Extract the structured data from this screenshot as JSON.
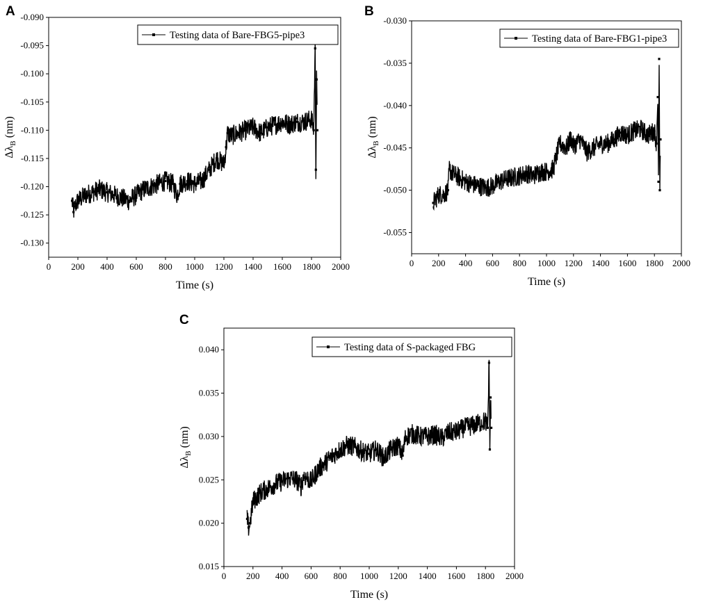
{
  "chart_data": [
    {
      "panel": "A",
      "type": "scatter",
      "xlabel": "Time (s)",
      "ylabel": "Δλ",
      "ylabel_sub": "B",
      "ylabel_unit": "(nm)",
      "xlim": [
        0,
        2000
      ],
      "ylim": [
        -0.1325,
        -0.09
      ],
      "xticks": [
        0,
        200,
        400,
        600,
        800,
        1000,
        1200,
        1400,
        1600,
        1800,
        2000
      ],
      "xtick_labels": [
        "0",
        "200",
        "400",
        "600",
        "800",
        "1000",
        "1200",
        "1400",
        "1600",
        "1800",
        "2000"
      ],
      "yticks": [
        -0.09,
        -0.095,
        -0.1,
        -0.105,
        -0.11,
        -0.115,
        -0.12,
        -0.125,
        -0.13
      ],
      "ytick_labels": [
        "-0.090",
        "-0.095",
        "-0.100",
        "-0.105",
        "-0.110",
        "-0.115",
        "-0.120",
        "-0.125",
        "-0.130"
      ],
      "legend_position": "top-right",
      "grid": false,
      "series": [
        {
          "name": "Testing data of Bare-FBG5-pipe3",
          "color": "#000000",
          "points": [
            [
              160,
              -0.1225
            ],
            [
              170,
              -0.1245
            ],
            [
              180,
              -0.1235
            ],
            [
              200,
              -0.1225
            ],
            [
              250,
              -0.1215
            ],
            [
              300,
              -0.121
            ],
            [
              350,
              -0.1205
            ],
            [
              400,
              -0.121
            ],
            [
              450,
              -0.1215
            ],
            [
              500,
              -0.122
            ],
            [
              550,
              -0.1225
            ],
            [
              600,
              -0.1215
            ],
            [
              650,
              -0.1205
            ],
            [
              700,
              -0.12
            ],
            [
              750,
              -0.1195
            ],
            [
              800,
              -0.119
            ],
            [
              850,
              -0.1195
            ],
            [
              880,
              -0.1215
            ],
            [
              900,
              -0.1195
            ],
            [
              950,
              -0.119
            ],
            [
              1000,
              -0.1195
            ],
            [
              1050,
              -0.119
            ],
            [
              1100,
              -0.117
            ],
            [
              1150,
              -0.115
            ],
            [
              1200,
              -0.116
            ],
            [
              1215,
              -0.113
            ],
            [
              1225,
              -0.1105
            ],
            [
              1250,
              -0.111
            ],
            [
              1300,
              -0.1105
            ],
            [
              1350,
              -0.11
            ],
            [
              1400,
              -0.1095
            ],
            [
              1450,
              -0.1105
            ],
            [
              1500,
              -0.1095
            ],
            [
              1550,
              -0.109
            ],
            [
              1600,
              -0.1085
            ],
            [
              1650,
              -0.109
            ],
            [
              1700,
              -0.1085
            ],
            [
              1750,
              -0.1085
            ],
            [
              1800,
              -0.108
            ],
            [
              1815,
              -0.11
            ],
            [
              1825,
              -0.0955
            ],
            [
              1830,
              -0.117
            ],
            [
              1835,
              -0.101
            ],
            [
              1840,
              -0.11
            ]
          ]
        }
      ]
    },
    {
      "panel": "B",
      "type": "scatter",
      "xlabel": "Time (s)",
      "ylabel": "Δλ",
      "ylabel_sub": "B",
      "ylabel_unit": "(nm)",
      "xlim": [
        0,
        2000
      ],
      "ylim": [
        -0.0575,
        -0.03
      ],
      "xticks": [
        0,
        200,
        400,
        600,
        800,
        1000,
        1200,
        1400,
        1600,
        1800,
        2000
      ],
      "xtick_labels": [
        "0",
        "200",
        "400",
        "600",
        "800",
        "1000",
        "1200",
        "1400",
        "1600",
        "1800",
        "2000"
      ],
      "yticks": [
        -0.03,
        -0.035,
        -0.04,
        -0.045,
        -0.05,
        -0.055
      ],
      "ytick_labels": [
        "-0.030",
        "-0.035",
        "-0.040",
        "-0.045",
        "-0.050",
        "-0.055"
      ],
      "legend_position": "top-right",
      "grid": false,
      "series": [
        {
          "name": "Testing data of Bare-FBG1-pipe3",
          "color": "#000000",
          "points": [
            [
              160,
              -0.0515
            ],
            [
              180,
              -0.051
            ],
            [
              200,
              -0.0505
            ],
            [
              240,
              -0.0505
            ],
            [
              270,
              -0.05
            ],
            [
              280,
              -0.0475
            ],
            [
              300,
              -0.048
            ],
            [
              350,
              -0.0485
            ],
            [
              400,
              -0.049
            ],
            [
              450,
              -0.0493
            ],
            [
              500,
              -0.0495
            ],
            [
              550,
              -0.0497
            ],
            [
              600,
              -0.0495
            ],
            [
              650,
              -0.049
            ],
            [
              700,
              -0.0487
            ],
            [
              750,
              -0.0485
            ],
            [
              800,
              -0.0483
            ],
            [
              850,
              -0.048
            ],
            [
              900,
              -0.0483
            ],
            [
              950,
              -0.0478
            ],
            [
              1000,
              -0.0478
            ],
            [
              1050,
              -0.0475
            ],
            [
              1080,
              -0.0455
            ],
            [
              1100,
              -0.0445
            ],
            [
              1150,
              -0.045
            ],
            [
              1180,
              -0.0438
            ],
            [
              1200,
              -0.0448
            ],
            [
              1250,
              -0.044
            ],
            [
              1300,
              -0.0455
            ],
            [
              1350,
              -0.045
            ],
            [
              1400,
              -0.0445
            ],
            [
              1450,
              -0.0445
            ],
            [
              1500,
              -0.044
            ],
            [
              1550,
              -0.0432
            ],
            [
              1600,
              -0.0435
            ],
            [
              1650,
              -0.043
            ],
            [
              1700,
              -0.0428
            ],
            [
              1750,
              -0.0435
            ],
            [
              1800,
              -0.043
            ],
            [
              1815,
              -0.0445
            ],
            [
              1825,
              -0.039
            ],
            [
              1830,
              -0.049
            ],
            [
              1835,
              -0.0345
            ],
            [
              1840,
              -0.05
            ],
            [
              1845,
              -0.044
            ]
          ]
        }
      ]
    },
    {
      "panel": "C",
      "type": "scatter",
      "xlabel": "Time (s)",
      "ylabel": "Δλ",
      "ylabel_sub": "B",
      "ylabel_unit": "(nm)",
      "xlim": [
        0,
        2000
      ],
      "ylim": [
        0.015,
        0.0425
      ],
      "xticks": [
        0,
        200,
        400,
        600,
        800,
        1000,
        1200,
        1400,
        1600,
        1800,
        2000
      ],
      "xtick_labels": [
        "0",
        "200",
        "400",
        "600",
        "800",
        "1000",
        "1200",
        "1400",
        "1600",
        "1800",
        "2000"
      ],
      "yticks": [
        0.015,
        0.02,
        0.025,
        0.03,
        0.035,
        0.04
      ],
      "ytick_labels": [
        "0.015",
        "0.020",
        "0.025",
        "0.030",
        "0.035",
        "0.040"
      ],
      "legend_position": "top-right",
      "grid": false,
      "series": [
        {
          "name": "Testing data of S-packaged FBG",
          "color": "#000000",
          "points": [
            [
              160,
              0.0205
            ],
            [
              170,
              0.0195
            ],
            [
              180,
              0.02
            ],
            [
              200,
              0.0225
            ],
            [
              250,
              0.0235
            ],
            [
              300,
              0.024
            ],
            [
              350,
              0.0245
            ],
            [
              400,
              0.0248
            ],
            [
              450,
              0.0252
            ],
            [
              500,
              0.025
            ],
            [
              530,
              0.0242
            ],
            [
              550,
              0.0255
            ],
            [
              600,
              0.0248
            ],
            [
              650,
              0.0262
            ],
            [
              700,
              0.027
            ],
            [
              750,
              0.0278
            ],
            [
              800,
              0.0285
            ],
            [
              850,
              0.029
            ],
            [
              900,
              0.0288
            ],
            [
              950,
              0.0283
            ],
            [
              1000,
              0.028
            ],
            [
              1050,
              0.0285
            ],
            [
              1100,
              0.0275
            ],
            [
              1150,
              0.0285
            ],
            [
              1200,
              0.029
            ],
            [
              1230,
              0.0278
            ],
            [
              1250,
              0.03
            ],
            [
              1300,
              0.0303
            ],
            [
              1350,
              0.03
            ],
            [
              1400,
              0.03
            ],
            [
              1450,
              0.0302
            ],
            [
              1500,
              0.0298
            ],
            [
              1550,
              0.0305
            ],
            [
              1600,
              0.0305
            ],
            [
              1650,
              0.031
            ],
            [
              1700,
              0.0312
            ],
            [
              1750,
              0.0315
            ],
            [
              1800,
              0.0318
            ],
            [
              1815,
              0.031
            ],
            [
              1825,
              0.0385
            ],
            [
              1830,
              0.0285
            ],
            [
              1835,
              0.0345
            ],
            [
              1840,
              0.031
            ]
          ]
        }
      ]
    }
  ]
}
